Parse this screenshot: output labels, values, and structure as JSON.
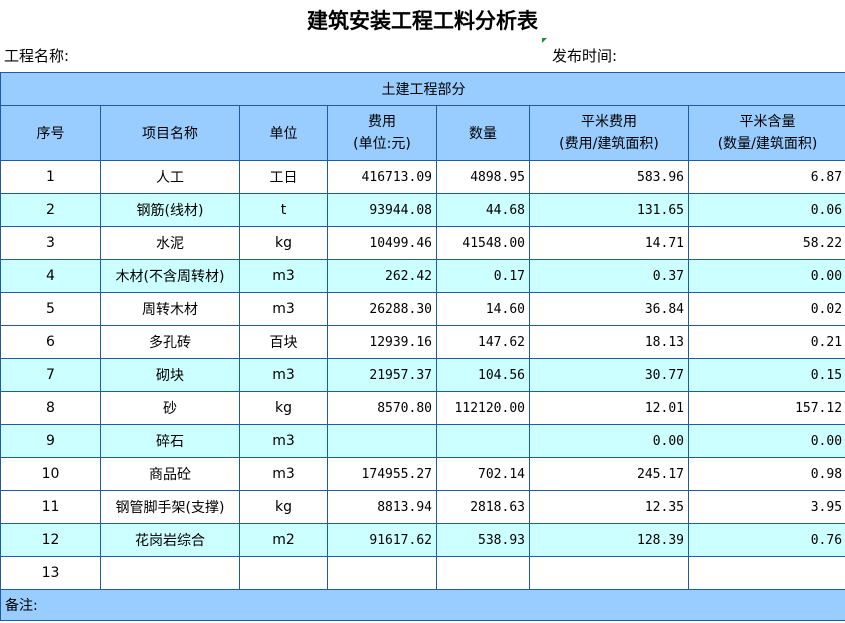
{
  "title": "建筑安装工程工料分析表",
  "project_label": "工程名称:",
  "date_label": "发布时间:",
  "section_title": "土建工程部分",
  "headers": {
    "no": "序号",
    "name": "项目名称",
    "unit": "单位",
    "cost_line1": "费用",
    "cost_line2": "(单位:元)",
    "qty": "数量",
    "sqm_cost_line1": "平米费用",
    "sqm_cost_line2": "(费用/建筑面积)",
    "sqm_qty_line1": "平米含量",
    "sqm_qty_line2": "(数量/建筑面积)"
  },
  "rows": [
    {
      "no": "1",
      "name": "人工",
      "unit": "工日",
      "cost": "416713.09",
      "qty": "4898.95",
      "sqm_cost": "583.96",
      "sqm_qty": "6.87"
    },
    {
      "no": "2",
      "name": "钢筋(线材)",
      "unit": "t",
      "cost": "93944.08",
      "qty": "44.68",
      "sqm_cost": "131.65",
      "sqm_qty": "0.06"
    },
    {
      "no": "3",
      "name": "水泥",
      "unit": "kg",
      "cost": "10499.46",
      "qty": "41548.00",
      "sqm_cost": "14.71",
      "sqm_qty": "58.22"
    },
    {
      "no": "4",
      "name": "木材(不含周转材)",
      "unit": "m3",
      "cost": "262.42",
      "qty": "0.17",
      "sqm_cost": "0.37",
      "sqm_qty": "0.00"
    },
    {
      "no": "5",
      "name": "周转木材",
      "unit": "m3",
      "cost": "26288.30",
      "qty": "14.60",
      "sqm_cost": "36.84",
      "sqm_qty": "0.02"
    },
    {
      "no": "6",
      "name": "多孔砖",
      "unit": "百块",
      "cost": "12939.16",
      "qty": "147.62",
      "sqm_cost": "18.13",
      "sqm_qty": "0.21"
    },
    {
      "no": "7",
      "name": "砌块",
      "unit": "m3",
      "cost": "21957.37",
      "qty": "104.56",
      "sqm_cost": "30.77",
      "sqm_qty": "0.15"
    },
    {
      "no": "8",
      "name": "砂",
      "unit": "kg",
      "cost": "8570.80",
      "qty": "112120.00",
      "sqm_cost": "12.01",
      "sqm_qty": "157.12"
    },
    {
      "no": "9",
      "name": "碎石",
      "unit": "m3",
      "cost": "",
      "qty": "",
      "sqm_cost": "0.00",
      "sqm_qty": "0.00"
    },
    {
      "no": "10",
      "name": "商品砼",
      "unit": "m3",
      "cost": "174955.27",
      "qty": "702.14",
      "sqm_cost": "245.17",
      "sqm_qty": "0.98"
    },
    {
      "no": "11",
      "name": "钢管脚手架(支撑)",
      "unit": "kg",
      "cost": "8813.94",
      "qty": "2818.63",
      "sqm_cost": "12.35",
      "sqm_qty": "3.95"
    },
    {
      "no": "12",
      "name": "花岗岩综合",
      "unit": "m2",
      "cost": "91617.62",
      "qty": "538.93",
      "sqm_cost": "128.39",
      "sqm_qty": "0.76"
    },
    {
      "no": "13",
      "name": "",
      "unit": "",
      "cost": "",
      "qty": "",
      "sqm_cost": "",
      "sqm_qty": ""
    }
  ],
  "remark_label": "备注:",
  "colors": {
    "header_fill": "#99ccff",
    "alt_row_fill": "#ccffff",
    "border": "#1e5aa8",
    "cell_marker": "#1f8f3a"
  }
}
